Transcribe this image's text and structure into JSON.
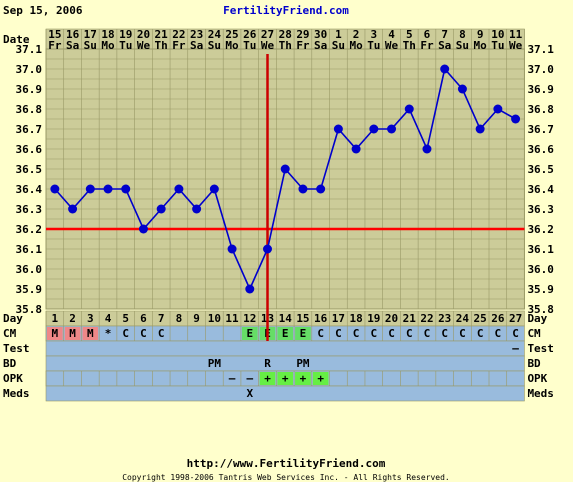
{
  "header": {
    "date": "Sep 15, 2006",
    "site": "FertilityFriend.com"
  },
  "footer": {
    "url": "http://www.FertilityFriend.com",
    "copyright": "Copyright 1998-2006 Tantris Web Services Inc. - All Rights Reserved."
  },
  "row_labels": {
    "date": "Date",
    "day": "Day",
    "cm": "CM",
    "test": "Test",
    "bd": "BD",
    "opk": "OPK",
    "meds": "Meds"
  },
  "colors": {
    "background": "#ffffcc",
    "grid_bg": "#cccc99",
    "grid_line": "#999966",
    "temp_line": "#0000cc",
    "coverline": "#ff0000",
    "ovulation_line": "#cc0000",
    "row_blue": "#99bbdd",
    "cm_m": "#ee8888",
    "cm_e": "#66dd66",
    "opk_pos": "#66ee44",
    "site_link": "#0000cc"
  },
  "chart_data": {
    "type": "line",
    "dates": [
      "15",
      "16",
      "17",
      "18",
      "19",
      "20",
      "21",
      "22",
      "23",
      "24",
      "25",
      "26",
      "27",
      "28",
      "29",
      "30",
      "1",
      "2",
      "3",
      "4",
      "5",
      "6",
      "7",
      "8",
      "9",
      "10",
      "11"
    ],
    "weekdays": [
      "Fr",
      "Sa",
      "Su",
      "Mo",
      "Tu",
      "We",
      "Th",
      "Fr",
      "Sa",
      "Su",
      "Mo",
      "Tu",
      "We",
      "Th",
      "Fr",
      "Sa",
      "Su",
      "Mo",
      "Tu",
      "We",
      "Th",
      "Fr",
      "Sa",
      "Su",
      "Mo",
      "Tu",
      "We"
    ],
    "days": [
      "1",
      "2",
      "3",
      "4",
      "5",
      "6",
      "7",
      "8",
      "9",
      "10",
      "11",
      "12",
      "13",
      "14",
      "15",
      "16",
      "17",
      "18",
      "19",
      "20",
      "21",
      "22",
      "23",
      "24",
      "25",
      "26",
      "27"
    ],
    "temperatures": [
      36.4,
      36.3,
      36.4,
      36.4,
      36.4,
      36.2,
      36.3,
      36.4,
      36.3,
      36.4,
      36.1,
      35.9,
      36.1,
      36.5,
      36.4,
      36.4,
      36.7,
      36.6,
      36.7,
      36.7,
      36.8,
      36.6,
      37.0,
      36.9,
      36.7,
      36.8,
      36.75
    ],
    "y_ticks": [
      "37.1",
      "37.0",
      "36.9",
      "36.8",
      "36.7",
      "36.6",
      "36.5",
      "36.4",
      "36.3",
      "36.2",
      "36.1",
      "36.0",
      "35.9",
      "35.8"
    ],
    "ylim": [
      35.8,
      37.1
    ],
    "coverline": 36.2,
    "ovulation_day": 13,
    "cm": [
      "M",
      "M",
      "M",
      "*",
      "C",
      "C",
      "C",
      "",
      "",
      "",
      "",
      "E",
      "E",
      "E",
      "E",
      "C",
      "C",
      "C",
      "C",
      "C",
      "C",
      "C",
      "C",
      "C",
      "C",
      "C",
      "C"
    ],
    "test": [
      "",
      "",
      "",
      "",
      "",
      "",
      "",
      "",
      "",
      "",
      "",
      "",
      "",
      "",
      "",
      "",
      "",
      "",
      "",
      "",
      "",
      "",
      "",
      "",
      "",
      "",
      "–"
    ],
    "bd": [
      "",
      "",
      "",
      "",
      "",
      "",
      "",
      "",
      "",
      "PM",
      "",
      "",
      "R",
      "",
      "PM",
      "",
      "",
      "",
      "",
      "",
      "",
      "",
      "",
      "",
      "",
      "",
      ""
    ],
    "opk": [
      "",
      "",
      "",
      "",
      "",
      "",
      "",
      "",
      "",
      "",
      "–",
      "–",
      "+",
      "+",
      "+",
      "+",
      "",
      "",
      "",
      "",
      "",
      "",
      "",
      "",
      "",
      "",
      ""
    ],
    "meds": [
      "",
      "",
      "",
      "",
      "",
      "",
      "",
      "",
      "",
      "",
      "",
      "X",
      "",
      "",
      "",
      "",
      "",
      "",
      "",
      "",
      "",
      "",
      "",
      "",
      "",
      "",
      ""
    ],
    "grid": true
  }
}
